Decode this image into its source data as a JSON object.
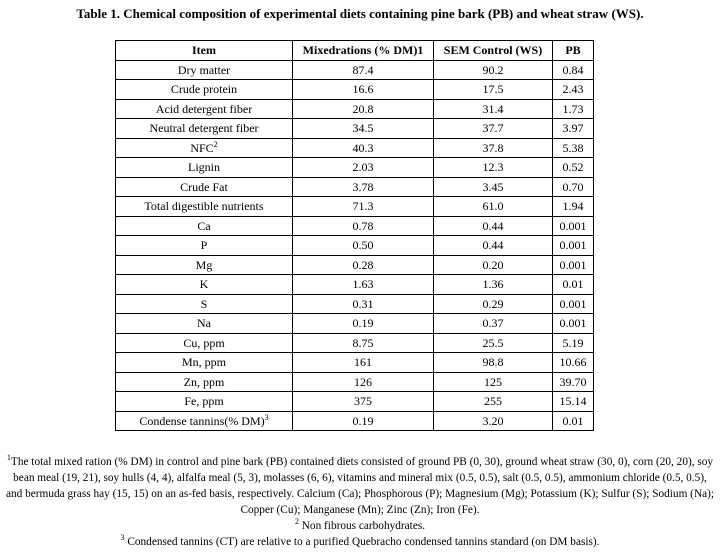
{
  "caption": "Table 1. Chemical composition of experimental diets containing pine bark (PB) and wheat straw (WS).",
  "table": {
    "headers": [
      "Item",
      "Mixedrations (% DM)1",
      "SEM Control (WS)",
      "PB"
    ],
    "rows": [
      {
        "item": "Dry matter",
        "sup": "",
        "col2": "87.4",
        "col3": "90.2",
        "col4": "0.84"
      },
      {
        "item": "Crude protein",
        "sup": "",
        "col2": "16.6",
        "col3": "17.5",
        "col4": "2.43"
      },
      {
        "item": "Acid detergent fiber",
        "sup": "",
        "col2": "20.8",
        "col3": "31.4",
        "col4": "1.73"
      },
      {
        "item": "Neutral detergent fiber",
        "sup": "",
        "col2": "34.5",
        "col3": "37.7",
        "col4": "3.97"
      },
      {
        "item": "NFC",
        "sup": "2",
        "col2": "40.3",
        "col3": "37.8",
        "col4": "5.38"
      },
      {
        "item": "Lignin",
        "sup": "",
        "col2": "2.03",
        "col3": "12.3",
        "col4": "0.52"
      },
      {
        "item": "Crude Fat",
        "sup": "",
        "col2": "3.78",
        "col3": "3.45",
        "col4": "0.70"
      },
      {
        "item": "Total digestible nutrients",
        "sup": "",
        "col2": "71.3",
        "col3": "61.0",
        "col4": "1.94"
      },
      {
        "item": "Ca",
        "sup": "",
        "col2": "0.78",
        "col3": "0.44",
        "col4": "0.001"
      },
      {
        "item": "P",
        "sup": "",
        "col2": "0.50",
        "col3": "0.44",
        "col4": "0.001"
      },
      {
        "item": "Mg",
        "sup": "",
        "col2": "0.28",
        "col3": "0.20",
        "col4": "0.001"
      },
      {
        "item": "K",
        "sup": "",
        "col2": "1.63",
        "col3": "1.36",
        "col4": "0.01"
      },
      {
        "item": "S",
        "sup": "",
        "col2": "0.31",
        "col3": "0.29",
        "col4": "0.001"
      },
      {
        "item": "Na",
        "sup": "",
        "col2": "0.19",
        "col3": "0.37",
        "col4": "0.001"
      },
      {
        "item": "Cu, ppm",
        "sup": "",
        "col2": "8.75",
        "col3": "25.5",
        "col4": "5.19"
      },
      {
        "item": "Mn, ppm",
        "sup": "",
        "col2": "161",
        "col3": "98.8",
        "col4": "10.66"
      },
      {
        "item": "Zn, ppm",
        "sup": "",
        "col2": "126",
        "col3": "125",
        "col4": "39.70"
      },
      {
        "item": "Fe, ppm",
        "sup": "",
        "col2": "375",
        "col3": "255",
        "col4": "15.14"
      },
      {
        "item": "Condense  tannins(% DM)",
        "sup": "3",
        "col2": "0.19",
        "col3": "3.20",
        "col4": "0.01"
      }
    ]
  },
  "footnotes": [
    {
      "mark": "1",
      "text": "The total mixed ration (% DM) in control and pine bark (PB) contained diets consisted of ground PB (0, 30), ground wheat straw (30, 0), corn (20, 20), soy bean meal (19, 21), soy hulls (4, 4), alfalfa meal (5, 3), molasses (6, 6), vitamins and mineral mix (0.5, 0.5), salt (0.5, 0.5), ammonium chloride (0.5, 0.5), and bermuda grass hay (15, 15) on an as-fed basis, respectively. Calcium (Ca); Phosphorous (P); Magnesium (Mg); Potassium (K); Sulfur (S); Sodium (Na); Copper (Cu); Manganese (Mn); Zinc (Zn); Iron (Fe)."
    },
    {
      "mark": "2",
      "text": " Non fibrous carbohydrates."
    },
    {
      "mark": "3",
      "text": " Condensed tannins (CT) are relative to a purified Quebracho condensed tannins standard (on DM basis)."
    }
  ]
}
